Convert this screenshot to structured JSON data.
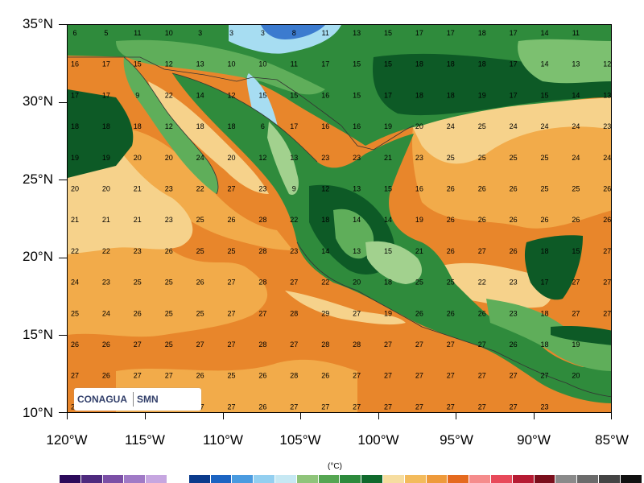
{
  "map": {
    "lat_labels": [
      "35°N",
      "30°N",
      "25°N",
      "20°N",
      "15°N",
      "10°N"
    ],
    "lon_labels": [
      "120°W",
      "115°W",
      "110°W",
      "105°W",
      "100°W",
      "95°W",
      "90°W",
      "85°W"
    ],
    "units": "(°C)",
    "logo": {
      "agency": "CONAGUA",
      "service": "SMN"
    },
    "colors": {
      "ocean_warm": "#e8862b",
      "ocean_mid": "#f2ab4a",
      "ocean_cool": "#f6d28b",
      "land_dark": "#0d5a26",
      "land_green": "#2f8b3c",
      "land_mid": "#5fae5a",
      "land_light": "#a2d18e",
      "cold_cyan": "#a7ddf2",
      "cold_blue": "#3c7bcf"
    },
    "colorbar": [
      "#2c0a5a",
      "#4e2a7e",
      "#7b4fa6",
      "#a07ac6",
      "#c6a6e0",
      "#ffffff",
      "#0b3b8c",
      "#1c64c2",
      "#4a9be0",
      "#93cff0",
      "#c6e8f3",
      "#8fc47a",
      "#55a652",
      "#2d8a3c",
      "#106a2d",
      "#f6dda0",
      "#f3bb5c",
      "#ee9a3b",
      "#e56a1f",
      "#f58c8c",
      "#e8495a",
      "#b61b33",
      "#7a0f1c",
      "#8a8a8a",
      "#6b6b6b",
      "#444444",
      "#111111"
    ],
    "values": [
      [
        "6",
        "5",
        "11",
        "10",
        "3",
        "3",
        "3",
        "8",
        "11",
        "13",
        "15",
        "17",
        "17",
        "18",
        "17",
        "14",
        "11"
      ],
      [
        "16",
        "17",
        "15",
        "12",
        "13",
        "10",
        "10",
        "11",
        "17",
        "15",
        "15",
        "18",
        "18",
        "18",
        "17",
        "14",
        "13",
        "12"
      ],
      [
        "17",
        "17",
        "9",
        "22",
        "14",
        "12",
        "15",
        "15",
        "16",
        "15",
        "17",
        "18",
        "18",
        "19",
        "17",
        "15",
        "14",
        "13"
      ],
      [
        "18",
        "18",
        "18",
        "12",
        "18",
        "18",
        "6",
        "17",
        "16",
        "16",
        "19",
        "20",
        "24",
        "25",
        "24",
        "24",
        "24",
        "23"
      ],
      [
        "19",
        "19",
        "20",
        "20",
        "24",
        "20",
        "12",
        "13",
        "23",
        "23",
        "21",
        "23",
        "25",
        "25",
        "25",
        "25",
        "24",
        "24"
      ],
      [
        "20",
        "20",
        "21",
        "23",
        "22",
        "27",
        "23",
        "9",
        "12",
        "13",
        "15",
        "16",
        "26",
        "26",
        "26",
        "25",
        "25",
        "26"
      ],
      [
        "21",
        "21",
        "21",
        "23",
        "25",
        "26",
        "28",
        "22",
        "18",
        "14",
        "14",
        "19",
        "26",
        "26",
        "26",
        "26",
        "26",
        "26"
      ],
      [
        "22",
        "22",
        "23",
        "26",
        "25",
        "25",
        "28",
        "23",
        "14",
        "13",
        "15",
        "21",
        "26",
        "27",
        "26",
        "18",
        "15",
        "27"
      ],
      [
        "24",
        "23",
        "25",
        "25",
        "26",
        "27",
        "28",
        "27",
        "22",
        "20",
        "18",
        "25",
        "25",
        "22",
        "23",
        "17",
        "27",
        "27"
      ],
      [
        "25",
        "24",
        "26",
        "25",
        "25",
        "27",
        "27",
        "28",
        "29",
        "27",
        "19",
        "26",
        "26",
        "26",
        "23",
        "18",
        "27",
        "27"
      ],
      [
        "26",
        "26",
        "27",
        "25",
        "27",
        "27",
        "28",
        "27",
        "28",
        "28",
        "27",
        "27",
        "27",
        "27",
        "26",
        "18",
        "19"
      ],
      [
        "27",
        "26",
        "27",
        "27",
        "26",
        "25",
        "26",
        "28",
        "26",
        "27",
        "27",
        "27",
        "27",
        "27",
        "27",
        "27",
        "20"
      ],
      [
        "27",
        "27",
        "27",
        "26",
        "27",
        "27",
        "26",
        "27",
        "27",
        "27",
        "27",
        "27",
        "27",
        "27",
        "27",
        "23"
      ]
    ]
  }
}
